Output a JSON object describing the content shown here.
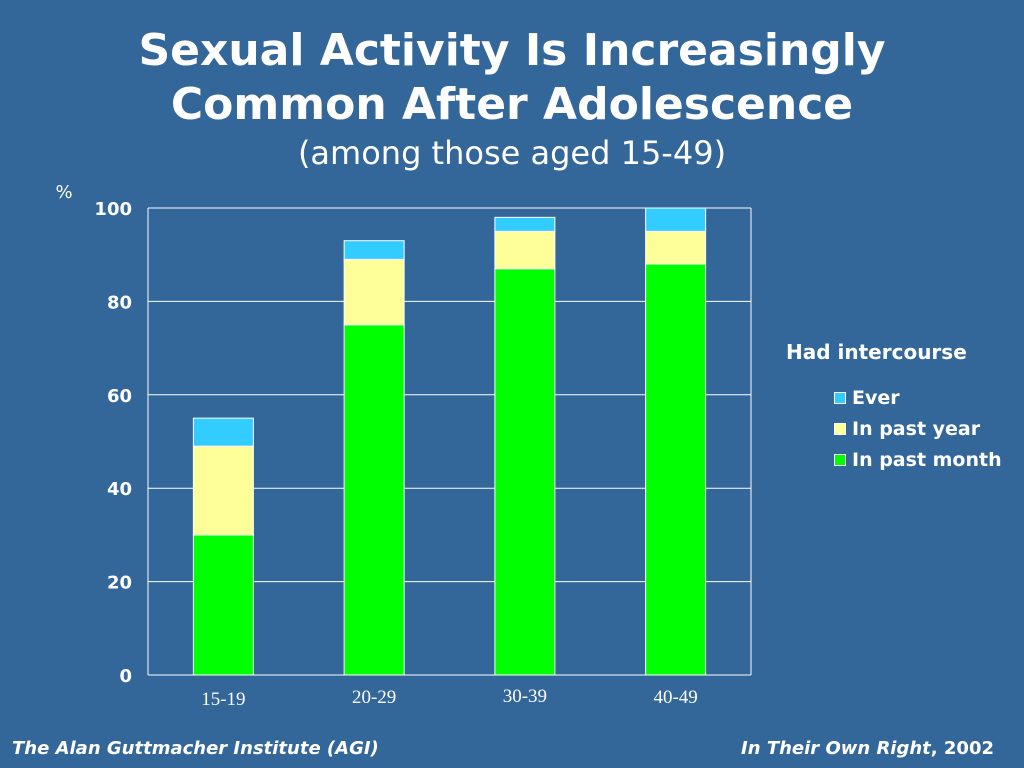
{
  "chart_data": {
    "type": "bar",
    "stacked": true,
    "title": "Sexual Activity Is Increasingly Common After Adolescence",
    "subtitle": "(among those aged 15-49)",
    "ylabel": "%",
    "ylim": [
      0,
      100
    ],
    "yticks": [
      0,
      20,
      40,
      60,
      80,
      100
    ],
    "grid": true,
    "categories": [
      "15-19",
      "20-29",
      "30-39",
      "40-49"
    ],
    "cumulative_totals": {
      "in_past_month": [
        30,
        75,
        87,
        88
      ],
      "in_past_year": [
        49,
        89,
        95,
        95
      ],
      "ever": [
        55,
        93,
        98,
        100
      ]
    },
    "series": [
      {
        "name": "In past month",
        "values": [
          30,
          75,
          87,
          88
        ],
        "color": "#00ff00"
      },
      {
        "name": "In past year",
        "values": [
          19,
          14,
          8,
          7
        ],
        "color": "#ffff99"
      },
      {
        "name": "Ever",
        "values": [
          6,
          4,
          3,
          5
        ],
        "color": "#33ccff"
      }
    ],
    "legend_title": "Had intercourse",
    "legend_order": [
      "Ever",
      "In past year",
      "In past month"
    ],
    "legend_position": "right"
  },
  "footer": {
    "left": "The Alan Guttmacher Institute (AGI)",
    "right_title": "In Their Own Right",
    "right_year": ", 2002"
  },
  "colors": {
    "background": "#336699"
  }
}
